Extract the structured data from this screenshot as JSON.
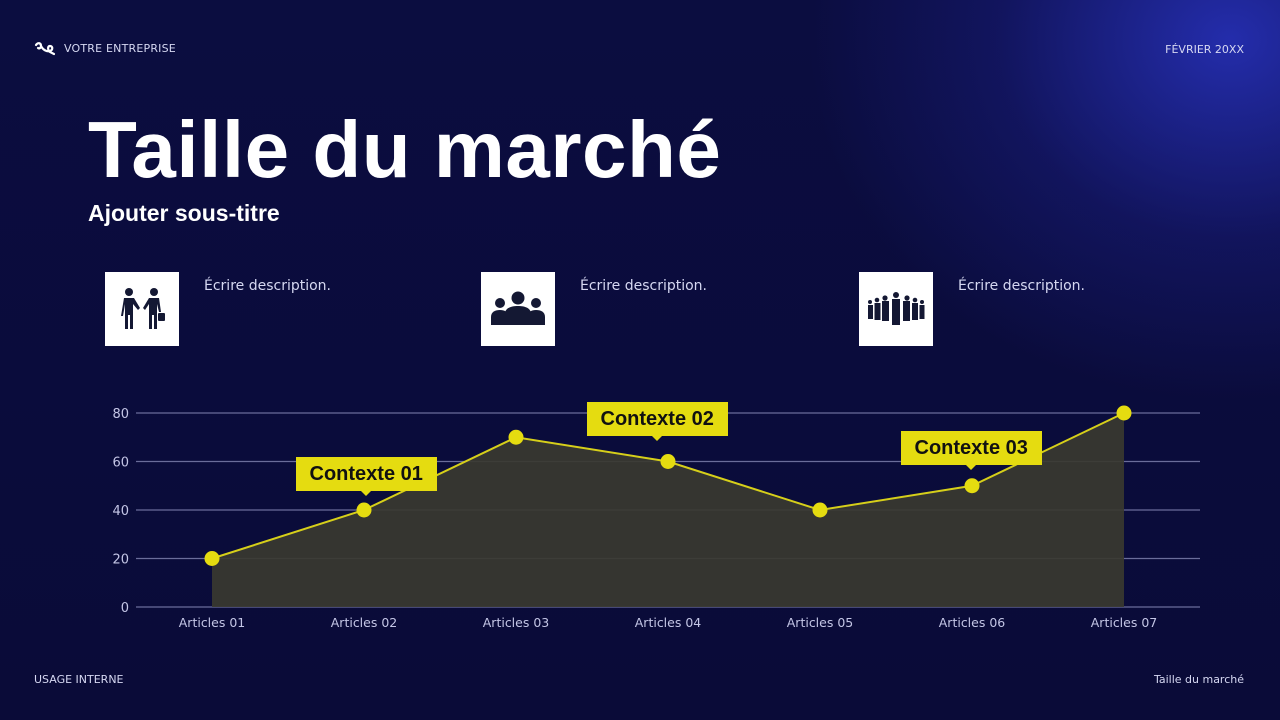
{
  "header": {
    "company": "VOTRE ENTREPRISE",
    "date": "FÉVRIER 20XX",
    "logo_icon": "stylized-swirl-logo-icon"
  },
  "slide": {
    "title": "Taille du marché",
    "subtitle": "Ajouter sous-titre"
  },
  "cards": [
    {
      "icon": "handshake-businessmen-icon",
      "text": "Écrire description."
    },
    {
      "icon": "team-of-three-icon",
      "text": "Écrire description."
    },
    {
      "icon": "crowd-of-people-icon",
      "text": "Écrire description."
    }
  ],
  "callouts": [
    {
      "label": "Contexte 01",
      "point_index": 1
    },
    {
      "label": "Contexte 02",
      "point_index": 3
    },
    {
      "label": "Contexte 03",
      "point_index": 5
    }
  ],
  "footer": {
    "left": "USAGE INTERNE",
    "right": "Taille du marché"
  },
  "colors": {
    "background": "#0b0c3a",
    "accent": "#e5dc10",
    "area_fill": "#3a3a30",
    "gridline": "#6a6d9a",
    "text_muted": "#d6d8f2"
  },
  "chart_data": {
    "type": "area",
    "title": "",
    "xlabel": "",
    "ylabel": "",
    "categories": [
      "Articles 01",
      "Articles 02",
      "Articles 03",
      "Articles 04",
      "Articles 05",
      "Articles 06",
      "Articles 07"
    ],
    "series": [
      {
        "name": "Taille du marché",
        "values": [
          20,
          40,
          70,
          60,
          40,
          50,
          80
        ]
      }
    ],
    "yticks": [
      0,
      20,
      40,
      60,
      80
    ],
    "ylim": [
      0,
      80
    ],
    "grid": true,
    "legend": "none",
    "markers": true,
    "annotations": [
      {
        "text": "Contexte 01",
        "category": "Articles 02"
      },
      {
        "text": "Contexte 02",
        "category": "Articles 04"
      },
      {
        "text": "Contexte 03",
        "category": "Articles 06"
      }
    ]
  }
}
